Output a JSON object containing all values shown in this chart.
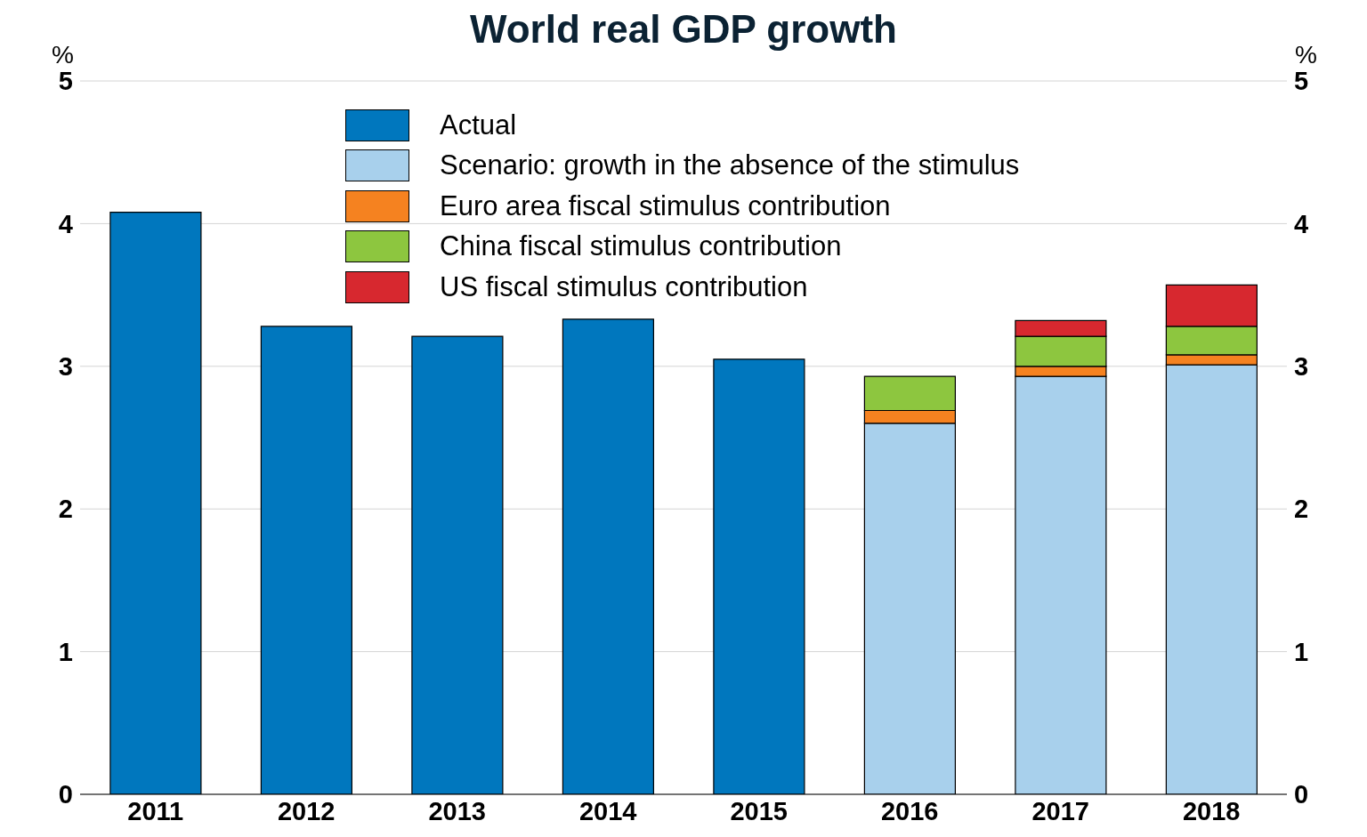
{
  "chart_data": {
    "type": "bar",
    "title": "World real GDP growth",
    "ylabel": "%",
    "y2label": "%",
    "categories": [
      "2011",
      "2012",
      "2013",
      "2014",
      "2015",
      "2016",
      "2017",
      "2018"
    ],
    "stacked": true,
    "ylim": [
      0,
      5
    ],
    "yticks": [
      0,
      1,
      2,
      3,
      4,
      5
    ],
    "y2lim": [
      0,
      5
    ],
    "y2ticks": [
      0,
      1,
      2,
      3,
      4,
      5
    ],
    "grid": "y",
    "legend": "top",
    "series": [
      {
        "name": "Actual",
        "color": "#0077be",
        "values": [
          4.08,
          3.28,
          3.21,
          3.33,
          3.05,
          null,
          null,
          null
        ]
      },
      {
        "name": "Scenario: growth in the absence of the stimulus",
        "color": "#a8d0ec",
        "values": [
          null,
          null,
          null,
          null,
          null,
          2.6,
          2.93,
          3.01
        ]
      },
      {
        "name": "Euro area fiscal stimulus contribution",
        "color": "#f58220",
        "values": [
          null,
          null,
          null,
          null,
          null,
          0.09,
          0.07,
          0.07
        ]
      },
      {
        "name": "China fiscal stimulus contribution",
        "color": "#8dc63f",
        "values": [
          null,
          null,
          null,
          null,
          null,
          0.24,
          0.21,
          0.2
        ]
      },
      {
        "name": "US fiscal stimulus contribution",
        "color": "#d7282f",
        "values": [
          null,
          null,
          null,
          null,
          null,
          null,
          0.11,
          0.29
        ]
      }
    ]
  }
}
